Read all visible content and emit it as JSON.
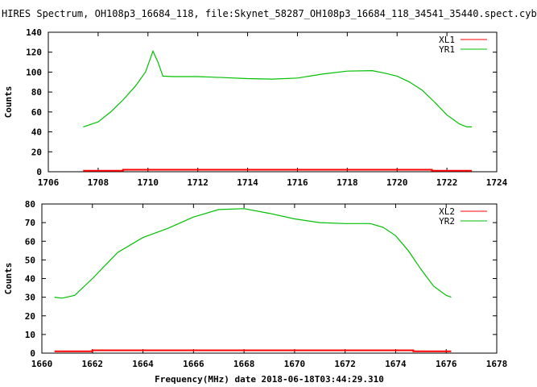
{
  "title": "HIRES Spectrum, OH108p3_16684_118, file:Skynet_58287_OH108p3_16684_118_34541_35440.spect.cyb",
  "chart_data": [
    {
      "type": "line",
      "ylabel": "Counts",
      "xlabel": "",
      "xlim": [
        1706,
        1724
      ],
      "ylim": [
        0,
        140
      ],
      "xticks": [
        1706,
        1708,
        1710,
        1712,
        1714,
        1716,
        1718,
        1720,
        1722,
        1724
      ],
      "yticks": [
        0,
        20,
        40,
        60,
        80,
        100,
        120,
        140
      ],
      "legend": "top-right",
      "grid": false,
      "series": [
        {
          "name": "XL1",
          "color": "#ff0000",
          "points": [
            [
              1707.4,
              1
            ],
            [
              1709,
              1
            ],
            [
              1709,
              2
            ],
            [
              1721.4,
              2
            ],
            [
              1721.4,
              1
            ],
            [
              1723,
              1
            ]
          ]
        },
        {
          "name": "YR1",
          "color": "#00c000",
          "points": [
            [
              1707.4,
              45
            ],
            [
              1708,
              50
            ],
            [
              1708.5,
              60
            ],
            [
              1709,
              72
            ],
            [
              1709.5,
              86
            ],
            [
              1709.9,
              100
            ],
            [
              1710.2,
              121
            ],
            [
              1710.4,
              110
            ],
            [
              1710.6,
              96
            ],
            [
              1711,
              95.5
            ],
            [
              1712,
              95.5
            ],
            [
              1713,
              94.5
            ],
            [
              1714,
              93.5
            ],
            [
              1715,
              93
            ],
            [
              1716,
              94
            ],
            [
              1717,
              98
            ],
            [
              1718,
              101
            ],
            [
              1719,
              101.5
            ],
            [
              1719.5,
              99
            ],
            [
              1720,
              96
            ],
            [
              1720.5,
              90
            ],
            [
              1721,
              82
            ],
            [
              1721.5,
              70
            ],
            [
              1722,
              57
            ],
            [
              1722.5,
              48
            ],
            [
              1722.8,
              45
            ],
            [
              1723,
              45
            ]
          ]
        }
      ]
    },
    {
      "type": "line",
      "ylabel": "Counts",
      "xlabel": "Frequency(MHz) date 2018-06-18T03:44:29.310",
      "xlim": [
        1660,
        1678
      ],
      "ylim": [
        0,
        80
      ],
      "xticks": [
        1660,
        1662,
        1664,
        1666,
        1668,
        1670,
        1672,
        1674,
        1676,
        1678
      ],
      "yticks": [
        0,
        10,
        20,
        30,
        40,
        50,
        60,
        70,
        80
      ],
      "legend": "top-right",
      "grid": false,
      "series": [
        {
          "name": "XL2",
          "color": "#ff0000",
          "points": [
            [
              1660.5,
              1
            ],
            [
              1662,
              1
            ],
            [
              1662,
              1.5
            ],
            [
              1674.7,
              1.5
            ],
            [
              1674.7,
              1
            ],
            [
              1676.2,
              1
            ]
          ]
        },
        {
          "name": "YR2",
          "color": "#00c000",
          "points": [
            [
              1660.5,
              30
            ],
            [
              1660.8,
              29.5
            ],
            [
              1661.3,
              31
            ],
            [
              1662,
              40
            ],
            [
              1662.5,
              47
            ],
            [
              1663,
              54
            ],
            [
              1664,
              62
            ],
            [
              1665,
              67
            ],
            [
              1666,
              73
            ],
            [
              1667,
              77
            ],
            [
              1668,
              77.5
            ],
            [
              1669,
              75
            ],
            [
              1670,
              72
            ],
            [
              1671,
              70
            ],
            [
              1672,
              69.5
            ],
            [
              1673,
              69.5
            ],
            [
              1673.5,
              67.5
            ],
            [
              1674,
              63
            ],
            [
              1674.5,
              55
            ],
            [
              1675,
              45
            ],
            [
              1675.5,
              36
            ],
            [
              1676,
              31
            ],
            [
              1676.2,
              30
            ]
          ]
        }
      ]
    }
  ]
}
